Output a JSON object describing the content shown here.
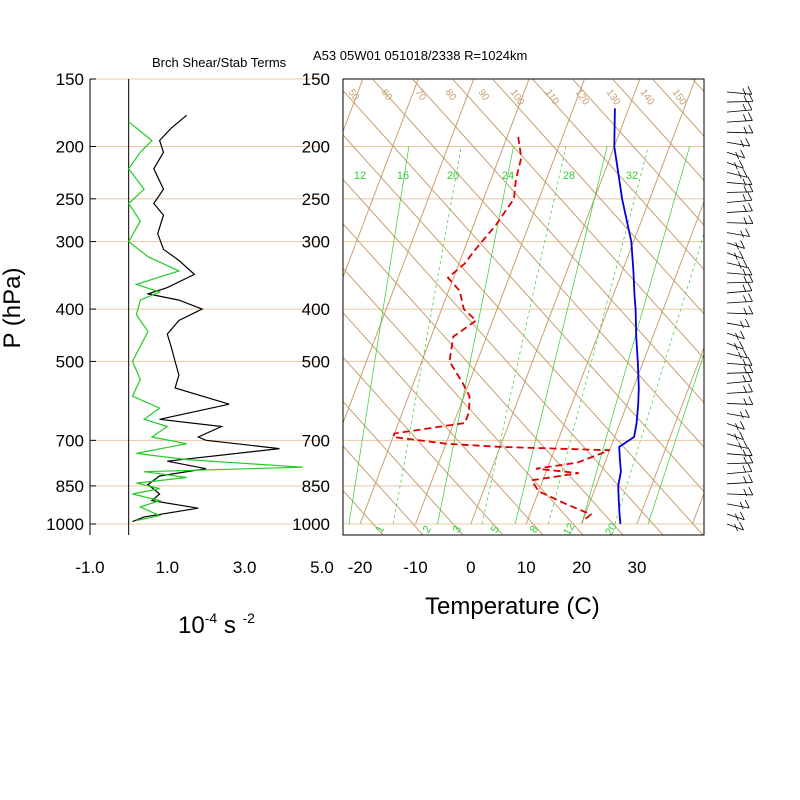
{
  "header": {
    "left_title": "Brch Shear/Stab Terms",
    "right_title": "A53 05W01 051018/2338 R=1024km"
  },
  "colors": {
    "isotherm": "#c8a070",
    "mixing_ratio": "#33cc33",
    "temperature": "#0000dd",
    "dewpoint": "#dd0000",
    "shear": "#000000",
    "stability": "#22cc22",
    "pressure_line": "#e8c8a0"
  },
  "chart_data": [
    {
      "type": "line",
      "title": "Brch Shear/Stab Terms",
      "xlabel_base": "10",
      "xlabel_exp1": "-4",
      "xlabel_mid": " s ",
      "xlabel_exp2": "-2",
      "ylabel": "P (hPa)",
      "x_ticks": [
        "-1.0",
        "1.0",
        "3.0",
        "5.0"
      ],
      "xlim": [
        -1.0,
        5.0
      ],
      "y_ticks": [
        "150",
        "200",
        "250",
        "300",
        "400",
        "500",
        "700",
        "850",
        "1000"
      ],
      "y_tick_values": [
        150,
        200,
        250,
        300,
        400,
        500,
        700,
        850,
        1000
      ],
      "ylim": [
        1000,
        150
      ],
      "y_scale": "log",
      "series": [
        {
          "color": "#000000",
          "points": [
            [
              1.5,
              175
            ],
            [
              1.1,
              185
            ],
            [
              0.8,
              195
            ],
            [
              0.9,
              205
            ],
            [
              0.65,
              220
            ],
            [
              0.9,
              240
            ],
            [
              0.65,
              255
            ],
            [
              0.9,
              268
            ],
            [
              0.75,
              290
            ],
            [
              0.9,
              310
            ],
            [
              1.3,
              325
            ],
            [
              1.7,
              345
            ],
            [
              1.0,
              365
            ],
            [
              0.5,
              375
            ],
            [
              1.3,
              385
            ],
            [
              1.9,
              400
            ],
            [
              1.3,
              420
            ],
            [
              1.0,
              445
            ],
            [
              1.1,
              470
            ],
            [
              1.2,
              500
            ],
            [
              1.3,
              530
            ],
            [
              1.2,
              560
            ],
            [
              2.6,
              600
            ],
            [
              0.8,
              640
            ],
            [
              2.4,
              660
            ],
            [
              1.8,
              690
            ],
            [
              2.0,
              700
            ],
            [
              3.9,
              725
            ],
            [
              1.0,
              765
            ],
            [
              2.0,
              790
            ],
            [
              0.8,
              815
            ],
            [
              0.5,
              845
            ],
            [
              0.8,
              880
            ],
            [
              0.6,
              905
            ],
            [
              1.8,
              935
            ],
            [
              0.4,
              970
            ],
            [
              0.1,
              990
            ]
          ]
        },
        {
          "color": "#22cc22",
          "points": [
            [
              0.0,
              180
            ],
            [
              0.6,
              195
            ],
            [
              0.3,
              205
            ],
            [
              0.0,
              220
            ],
            [
              0.4,
              240
            ],
            [
              0.0,
              255
            ],
            [
              0.3,
              275
            ],
            [
              0.0,
              300
            ],
            [
              0.5,
              320
            ],
            [
              1.3,
              340
            ],
            [
              0.2,
              360
            ],
            [
              0.8,
              372
            ],
            [
              0.3,
              385
            ],
            [
              0.2,
              410
            ],
            [
              0.5,
              440
            ],
            [
              0.1,
              500
            ],
            [
              0.3,
              540
            ],
            [
              0.1,
              580
            ],
            [
              0.8,
              610
            ],
            [
              0.4,
              640
            ],
            [
              1.0,
              660
            ],
            [
              0.6,
              690
            ],
            [
              1.5,
              710
            ],
            [
              0.2,
              740
            ],
            [
              1.5,
              760
            ],
            [
              4.5,
              785
            ],
            [
              0.4,
              800
            ],
            [
              1.5,
              820
            ],
            [
              0.2,
              840
            ],
            [
              0.8,
              860
            ],
            [
              0.1,
              880
            ],
            [
              0.8,
              905
            ],
            [
              0.3,
              930
            ],
            [
              0.8,
              965
            ],
            [
              0.2,
              985
            ]
          ]
        }
      ]
    },
    {
      "type": "line",
      "title": "A53 05W01 051018/2338 R=1024km",
      "xlabel": "Temperature (C)",
      "x_ticks": [
        "-20",
        "-10",
        "0",
        "10",
        "20",
        "30"
      ],
      "x_tick_values": [
        -20,
        -10,
        0,
        10,
        20,
        30
      ],
      "xlim": [
        -23,
        40
      ],
      "y_ticks": [
        "150",
        "200",
        "250",
        "300",
        "400",
        "500",
        "700",
        "850",
        "1000"
      ],
      "y_tick_values": [
        150,
        200,
        250,
        300,
        400,
        500,
        700,
        850,
        1000
      ],
      "ylim": [
        1000,
        150
      ],
      "y_scale": "log",
      "mixing_ratio_labels": [
        "12",
        "16",
        "20",
        "24",
        "28",
        "32"
      ],
      "bottom_ratio_labels": [
        "1",
        "2",
        "3",
        "5",
        "8",
        "12",
        "20"
      ],
      "adiabat_labels": [
        "50",
        "60",
        "70",
        "80",
        "90",
        "100",
        "110",
        "120",
        "130",
        "140",
        "150"
      ],
      "series": [
        {
          "name": "Temperature",
          "color": "#0000dd",
          "style": "solid",
          "points": [
            [
              -2.5,
              170
            ],
            [
              0,
              200
            ],
            [
              5,
              250
            ],
            [
              9.6,
              300
            ],
            [
              12,
              340
            ],
            [
              14,
              380
            ],
            [
              15,
              400
            ],
            [
              17,
              450
            ],
            [
              19,
              500
            ],
            [
              21,
              560
            ],
            [
              22,
              600
            ],
            [
              23,
              650
            ],
            [
              23.5,
              690
            ],
            [
              21.5,
              720
            ],
            [
              22.5,
              760
            ],
            [
              23.5,
              800
            ],
            [
              24,
              850
            ],
            [
              25,
              900
            ],
            [
              26,
              950
            ],
            [
              27,
              1000
            ]
          ]
        },
        {
          "name": "Dewpoint",
          "color": "#dd0000",
          "style": "dashed",
          "points": [
            [
              -18,
              192
            ],
            [
              -16,
              210
            ],
            [
              -15.5,
              230
            ],
            [
              -14.5,
              250
            ],
            [
              -16,
              280
            ],
            [
              -18,
              310
            ],
            [
              -19,
              330
            ],
            [
              -21,
              350
            ],
            [
              -18,
              370
            ],
            [
              -16,
              400
            ],
            [
              -13,
              420
            ],
            [
              -16,
              450
            ],
            [
              -15,
              500
            ],
            [
              -11,
              550
            ],
            [
              -9,
              580
            ],
            [
              -8,
              620
            ],
            [
              -8,
              650
            ],
            [
              -20,
              680
            ],
            [
              -20,
              690
            ],
            [
              -10,
              710
            ],
            [
              0,
              720
            ],
            [
              20,
              730
            ],
            [
              15,
              770
            ],
            [
              8,
              790
            ],
            [
              16,
              805
            ],
            [
              8,
              830
            ],
            [
              10,
              870
            ],
            [
              16,
              920
            ],
            [
              21,
              960
            ],
            [
              20,
              990
            ]
          ]
        }
      ]
    }
  ],
  "wind_barbs": {
    "count": 44,
    "note": ""
  }
}
